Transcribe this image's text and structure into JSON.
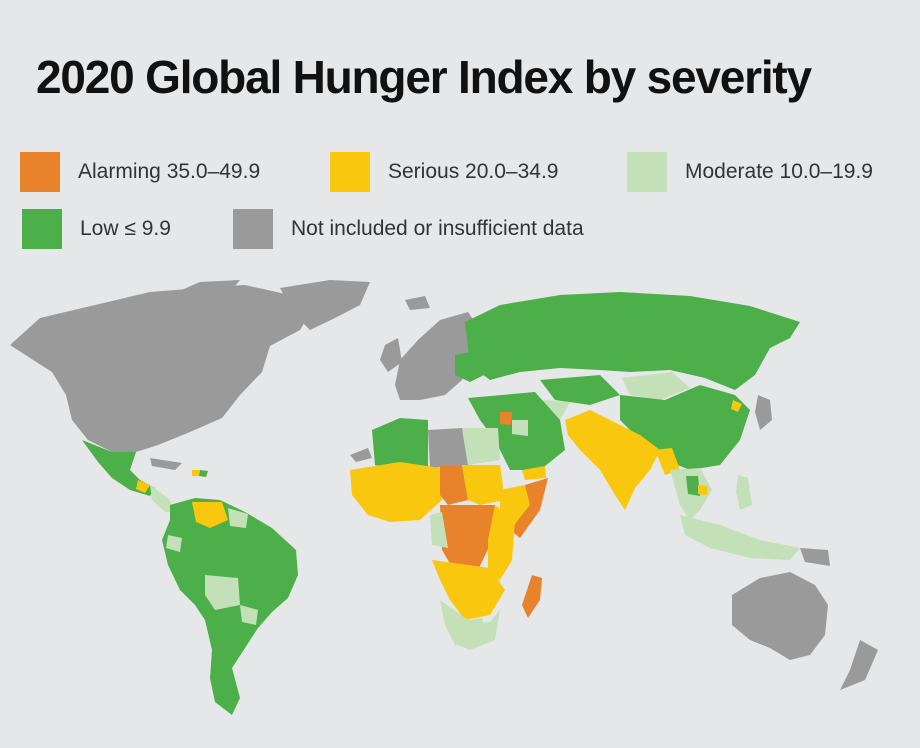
{
  "title": "2020 Global Hunger Index by severity",
  "colors": {
    "alarming": "#e8822b",
    "serious": "#f9c80e",
    "moderate": "#c4e0b8",
    "low": "#4caf4a",
    "no_data": "#9a9a9a",
    "background": "#e6e7e8"
  },
  "legend": [
    {
      "label": "Alarming 35.0–49.9",
      "category": "alarming"
    },
    {
      "label": "Serious 20.0–34.9",
      "category": "serious"
    },
    {
      "label": "Moderate 10.0–19.9",
      "category": "moderate"
    },
    {
      "label": "Low ≤ 9.9",
      "category": "low"
    },
    {
      "label": "Not included or insufficient data",
      "category": "no_data"
    }
  ]
}
